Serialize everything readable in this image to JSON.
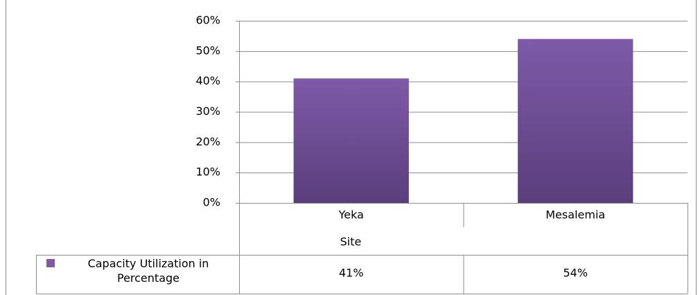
{
  "chart_data": {
    "type": "bar",
    "categories": [
      "Yeka",
      "Mesalemia"
    ],
    "x_label": "Site",
    "series": [
      {
        "name": "Capacity Utilization in Percentage",
        "color": "#7e5aa8",
        "values": [
          41,
          54
        ],
        "value_labels": [
          "41%",
          "54%"
        ]
      }
    ],
    "ylim": [
      0,
      60
    ],
    "yticks": [
      {
        "value": 0,
        "label": "0%"
      },
      {
        "value": 10,
        "label": "10%"
      },
      {
        "value": 20,
        "label": "20%"
      },
      {
        "value": 30,
        "label": "30%"
      },
      {
        "value": 40,
        "label": "40%"
      },
      {
        "value": 50,
        "label": "50%"
      },
      {
        "value": 60,
        "label": "60%"
      }
    ],
    "grid": true,
    "data_table": true
  }
}
